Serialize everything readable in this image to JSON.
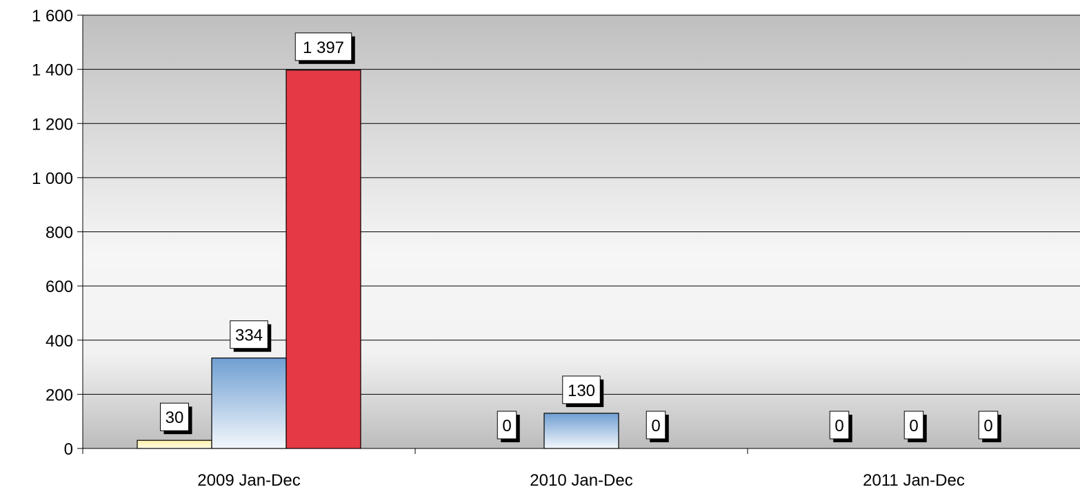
{
  "chart_data": {
    "type": "bar",
    "title": "",
    "xlabel": "",
    "ylabel": "",
    "categories": [
      "2009 Jan-Dec",
      "2010 Jan-Dec",
      "2011 Jan-Dec"
    ],
    "series": [
      {
        "values": [
          30,
          0,
          0
        ],
        "color": "#fff1a8"
      },
      {
        "values": [
          334,
          130,
          0
        ],
        "color": "#7aa7d4"
      },
      {
        "values": [
          1397,
          0,
          0
        ],
        "color": "#e63946"
      }
    ],
    "data_labels": [
      [
        "30",
        "0",
        "0"
      ],
      [
        "334",
        "130",
        "0"
      ],
      [
        "1 397",
        "0",
        "0"
      ]
    ],
    "ylim": [
      0,
      1600
    ],
    "yticks": [
      0,
      200,
      400,
      600,
      800,
      1000,
      1200,
      1400,
      1600
    ],
    "ytick_labels": [
      "0",
      "200",
      "400",
      "600",
      "800",
      "1 000",
      "1 200",
      "1 400",
      "1 600"
    ],
    "grid": true,
    "legend": "none"
  }
}
